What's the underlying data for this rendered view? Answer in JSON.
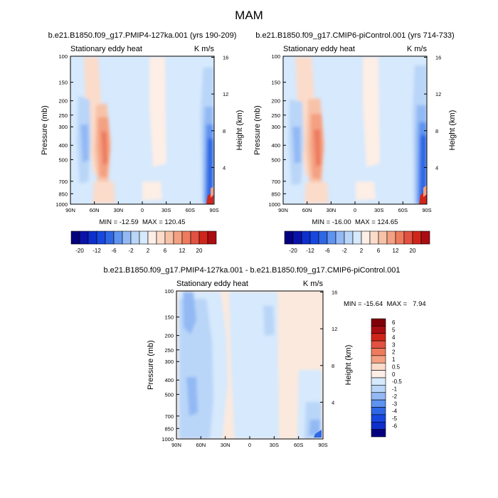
{
  "page_title": "MAM",
  "panels": [
    {
      "title": "b.e21.B1850.f09_g17.PMIP4-127ka.001 (yrs 190-209)",
      "left_label": "Stationary eddy heat",
      "right_label": "K m/s",
      "stats": "MIN = -12.59  MAX = 120.45"
    },
    {
      "title": "b.e21.B1850.f09_g17.CMIP6-piControl.001 (yrs 714-733)",
      "left_label": "Stationary eddy heat",
      "right_label": "K m/s",
      "stats": "MIN = -16.00  MAX = 124.65"
    },
    {
      "title": "b.e21.B1850.f09_g17.PMIP4-127ka.001 - b.e21.B1850.f09_g17.CMIP6-piControl.001",
      "left_label": "Stationary eddy heat",
      "right_label": "K m/s",
      "stats": "MIN = -15.64  MAX =   7.94"
    }
  ],
  "chart_data": [
    {
      "type": "heatmap",
      "title": "b.e21.B1850.f09_g17.PMIP4-127ka.001 (yrs 190-209)",
      "xlabel": "",
      "ylabel": "Pressure (mb)",
      "ylabel_right": "Height (km)",
      "x_ticks": [
        "90N",
        "60N",
        "30N",
        "0",
        "30S",
        "60S",
        "90S"
      ],
      "x_range": [
        90,
        -90
      ],
      "y_ticks": [
        "100",
        "150",
        "200",
        "250",
        "300",
        "400",
        "500",
        "700",
        "850",
        "1000"
      ],
      "y_range": [
        100,
        1000
      ],
      "y_scale": "log",
      "height_ticks": [
        "4",
        "8",
        "12",
        "16"
      ],
      "levels": [
        -20,
        -16,
        -12,
        -8,
        -6,
        -4,
        -2,
        -1,
        1,
        2,
        4,
        6,
        8,
        12,
        16,
        20
      ],
      "colorbar_labels": [
        "-20",
        "-12",
        "-6",
        "-2",
        "2",
        "6",
        "12",
        "20"
      ],
      "colorbar_orientation": "horizontal",
      "min": -12.59,
      "max": 120.45
    },
    {
      "type": "heatmap",
      "title": "b.e21.B1850.f09_g17.CMIP6-piControl.001 (yrs 714-733)",
      "xlabel": "",
      "ylabel": "Pressure (mb)",
      "ylabel_right": "Height (km)",
      "x_ticks": [
        "90N",
        "60N",
        "30N",
        "0",
        "30S",
        "60S",
        "90S"
      ],
      "x_range": [
        90,
        -90
      ],
      "y_ticks": [
        "100",
        "150",
        "200",
        "250",
        "300",
        "400",
        "500",
        "700",
        "850",
        "1000"
      ],
      "y_range": [
        100,
        1000
      ],
      "y_scale": "log",
      "height_ticks": [
        "4",
        "8",
        "12",
        "16"
      ],
      "levels": [
        -20,
        -16,
        -12,
        -8,
        -6,
        -4,
        -2,
        -1,
        1,
        2,
        4,
        6,
        8,
        12,
        16,
        20
      ],
      "colorbar_labels": [
        "-20",
        "-12",
        "-6",
        "-2",
        "2",
        "6",
        "12",
        "20"
      ],
      "colorbar_orientation": "horizontal",
      "min": -16.0,
      "max": 124.65
    },
    {
      "type": "heatmap",
      "title": "b.e21.B1850.f09_g17.PMIP4-127ka.001 - b.e21.B1850.f09_g17.CMIP6-piControl.001",
      "xlabel": "",
      "ylabel": "Pressure (mb)",
      "ylabel_right": "Height (km)",
      "x_ticks": [
        "90N",
        "60N",
        "30N",
        "0",
        "30S",
        "60S",
        "90S"
      ],
      "x_range": [
        90,
        -90
      ],
      "y_ticks": [
        "100",
        "150",
        "200",
        "250",
        "300",
        "400",
        "500",
        "700",
        "850",
        "1000"
      ],
      "y_range": [
        100,
        1000
      ],
      "y_scale": "log",
      "height_ticks": [
        "4",
        "8",
        "12",
        "16"
      ],
      "levels": [
        -6,
        -5,
        -4,
        -3,
        -2,
        -1,
        -0.5,
        0,
        0.5,
        1,
        2,
        3,
        4,
        5,
        6
      ],
      "colorbar_labels": [
        "6",
        "5",
        "4",
        "3",
        "2",
        "1",
        "0.5",
        "0",
        "-0.5",
        "-1",
        "-2",
        "-3",
        "-4",
        "-5",
        "-6"
      ],
      "colorbar_orientation": "vertical",
      "min": -15.64,
      "max": 7.94
    }
  ]
}
